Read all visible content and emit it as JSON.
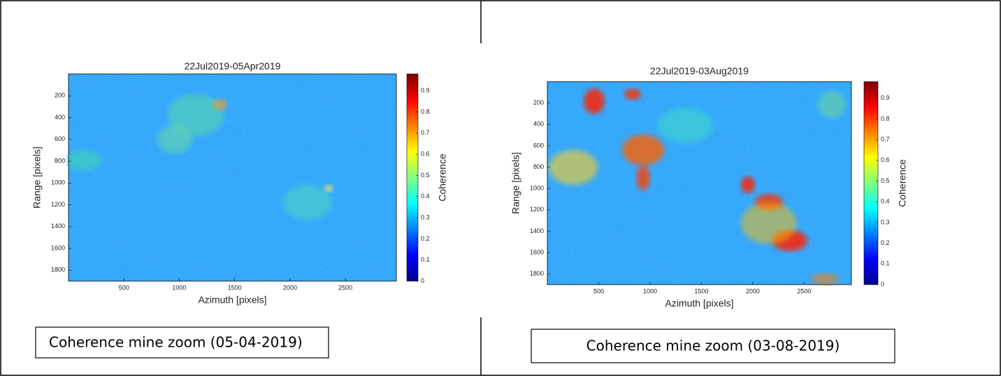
{
  "panels": [
    {
      "title": "22Jul2019-05Apr2019",
      "xlabel": "Azimuth [pixels]",
      "ylabel": "Range [pixels]",
      "xlim": [
        0,
        2960
      ],
      "ylim": [
        0,
        1900
      ],
      "xticks": [
        500,
        1000,
        1500,
        2000,
        2500
      ],
      "yticks": [
        200,
        400,
        600,
        800,
        1000,
        1200,
        1400,
        1600,
        1800
      ],
      "colorbar_label": "Coherence",
      "colorbar_lim": [
        0,
        0.98
      ],
      "colorbar_ticks": [
        0,
        0.1,
        0.2,
        0.3,
        0.4,
        0.5,
        0.6,
        0.7,
        0.8,
        0.9
      ],
      "caption": "Coherence mine zoom (05-04-2019)"
    },
    {
      "title": "22Jul2019-03Aug2019",
      "xlabel": "Azimuth [pixels]",
      "ylabel": "Range [pixels]",
      "xlim": [
        0,
        2960
      ],
      "ylim": [
        0,
        1900
      ],
      "xticks": [
        500,
        1000,
        1500,
        2000,
        2500
      ],
      "yticks": [
        200,
        400,
        600,
        800,
        1000,
        1200,
        1400,
        1600,
        1800
      ],
      "colorbar_label": "Coherence",
      "colorbar_lim": [
        0,
        0.98
      ],
      "colorbar_ticks": [
        0,
        0.1,
        0.2,
        0.3,
        0.4,
        0.5,
        0.6,
        0.7,
        0.8,
        0.9
      ],
      "caption": "Coherence mine zoom (03-08-2019)"
    }
  ]
}
